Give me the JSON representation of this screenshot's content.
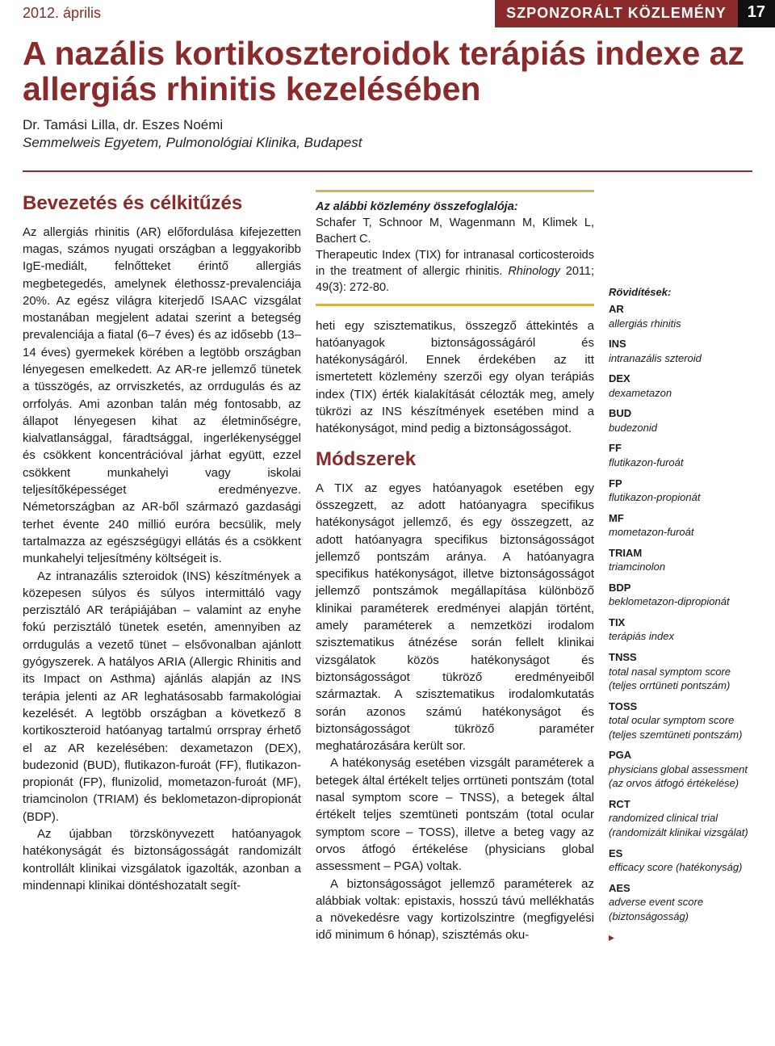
{
  "runhead": {
    "date": "2012. április",
    "section": "SZPONZORÁLT KÖZLEMÉNY",
    "page": "17"
  },
  "title": "A nazális kortikoszteroidok terápiás indexe az allergiás rhinitis kezelésében",
  "authors": "Dr. Tamási Lilla, dr. Eszes Noémi",
  "affil": "Semmelweis Egyetem, Pulmonológiai Klinika, Budapest",
  "h_intro": "Bevezetés és célkitűzés",
  "h_meth": "Módszerek",
  "colL_p1": "Az allergiás rhinitis (AR) előfordulása kifejezetten magas, számos nyugati országban a leggyakoribb IgE-mediált, felnőtteket érintő allergiás megbetegedés, amelynek élethossz-prevalenciája 20%. Az egész világra kiterjedő ISAAC vizsgálat mostanában megjelent adatai szerint a betegség prevalenciája a fiatal (6–7 éves) és az idősebb (13–14 éves) gyermekek körében a legtöbb országban lényegesen emelkedett. Az AR-re jellemző tünetek a tüsszögés, az orrviszketés, az orrdugulás és az orrfolyás. Ami azonban talán még fontosabb, az állapot lényegesen kihat az életminőségre, kialvatlansággal, fáradtsággal, ingerlékenységgel és csökkent koncentrációval járhat együtt, ezzel csökkent munkahelyi vagy iskolai teljesítőképességet eredményezve. Németországban az AR-ből származó gazdasági terhet évente 240 millió euróra becsülik, mely tartalmazza az egészségügyi ellátás és a csökkent munkahelyi teljesítmény költségeit is.",
  "colL_p2": "Az intranazális szteroidok (INS) készítmények a közepesen súlyos és súlyos intermittáló vagy perzisztáló AR terápiájában – valamint az enyhe fokú perzisztáló tünetek esetén, amennyiben az orrdugulás a vezető tünet – elsővonalban ajánlott gyógyszerek. A hatályos ARIA (Allergic Rhinitis and its Impact on Asthma) ajánlás alapján az INS terápia jelenti az AR leghatásosabb farmakológiai kezelését. A legtöbb országban a következő 8 kortikoszteroid hatóanyag tartalmú orrspray érhető el az AR kezelésében: dexametazon (DEX), budezonid (BUD), flutikazon-furoát (FF), flutikazon-propionát (FP), flunizolid, mometazon-furoát (MF), triamcinolon (TRIAM) és beklometazon-dipropionát (BDP).",
  "colL_p3": "Az újabban törzskönyvezett hatóanyagok hatékonyságát és biztonságosságát randomizált kontrollált klinikai vizsgálatok igazolták, azonban a mindennapi klinikai döntéshozatalt segít-",
  "summary": {
    "head": "Az alábbi közlemény összefoglalója:",
    "line1": "Schafer T, Schnoor M, Wagenmann M, Klimek L, Bachert C.",
    "line2a": "Therapeutic Index (TIX) for intranasal corticosteroids in the treatment of allergic rhinitis. ",
    "line2b": "Rhinology",
    "line2c": " 2011; 49(3): 272-80."
  },
  "colM_p1": "heti egy szisztematikus, összegző áttekintés a hatóanyagok biztonságosságáról és hatékonyságáról. Ennek érdekében az itt ismertetett közlemény szerzői egy olyan terápiás index (TIX) érték kialakítását célozták meg, amely tükrözi az INS készítmények esetében mind a hatékonyságot, mind pedig a biztonságosságot.",
  "colM_p2": "A TIX az egyes hatóanyagok esetében egy összegzett, az adott hatóanyagra specifikus hatékonyságot jellemző, és egy összegzett, az adott hatóanyagra specifikus biztonságosságot jellemző pontszám aránya. A hatóanyagra specifikus hatékonyságot, illetve biztonságosságot jellemző pontszámok megállapítása különböző klinikai paraméterek eredményei alapján történt, amely paraméterek a nemzetközi irodalom szisztematikus átnézése során fellelt klinikai vizsgálatok közös hatékonyságot és biztonságosságot tükröző eredményeiből származtak. A szisztematikus irodalomkutatás során azonos számú hatékonyságot és biztonságosságot tükröző paraméter meghatározására került sor.",
  "colM_p3": "A hatékonyság esetében vizsgált paraméterek a betegek által értékelt teljes orrtüneti pontszám (total nasal symptom score – TNSS), a betegek által értékelt teljes szemtüneti pontszám (total ocular symptom score – TOSS), illetve a beteg vagy az orvos átfogó értékelése (physicians global assessment – PGA) voltak.",
  "colM_p4": "A biztonságosságot jellemző paraméterek az alábbiak voltak: epistaxis, hosszú távú mellékhatás a növekedésre vagy kortizolszintre (megfigyelési idő minimum 6 hónap), szisztémás oku-",
  "abbrs_head": "Rövidítések:",
  "abbrs": [
    {
      "ab": "AR",
      "ex": "allergiás rhinitis"
    },
    {
      "ab": "INS",
      "ex": "intranazális szteroid"
    },
    {
      "ab": "DEX",
      "ex": "dexametazon"
    },
    {
      "ab": "BUD",
      "ex": "budezonid"
    },
    {
      "ab": "FF",
      "ex": "flutikazon-furoát"
    },
    {
      "ab": "FP",
      "ex": "flutikazon-propionát"
    },
    {
      "ab": "MF",
      "ex": "mometazon-furoát"
    },
    {
      "ab": "TRIAM",
      "ex": "triamcinolon"
    },
    {
      "ab": "BDP",
      "ex": "beklometazon-dipropionát"
    },
    {
      "ab": "TIX",
      "ex": "terápiás index"
    },
    {
      "ab": "TNSS",
      "ex": "total nasal symptom score (teljes orrtüneti pontszám)"
    },
    {
      "ab": "TOSS",
      "ex": "total ocular symptom score (teljes szemtüneti pontszám)"
    },
    {
      "ab": "PGA",
      "ex": "physicians global assessment (az orvos átfogó értékelése)"
    },
    {
      "ab": "RCT",
      "ex": "randomized clinical trial (randomizált klinikai vizsgálat)"
    },
    {
      "ab": "ES",
      "ex": "efficacy score (hatékonyság)"
    },
    {
      "ab": "AES",
      "ex": "adverse event score (biztonságosság)"
    }
  ]
}
